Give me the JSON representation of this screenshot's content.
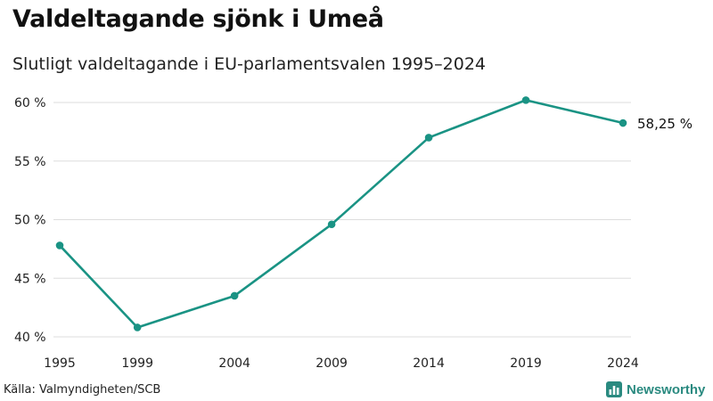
{
  "header": {
    "title": "Valdeltagande sjönk i Umeå",
    "subtitle": "Slutligt valdeltagande i EU-parlamentsvalen 1995–2024"
  },
  "footer": {
    "source": "Källa: Valmyndigheten/SCB",
    "brand_name": "Newsworthy",
    "brand_icon": "bar-chart-icon"
  },
  "colors": {
    "line": "#1a9384",
    "grid": "#dddddd",
    "brand": "#2a8a80"
  },
  "chart_data": {
    "type": "line",
    "title": "Valdeltagande sjönk i Umeå",
    "subtitle": "Slutligt valdeltagande i EU-parlamentsvalen 1995–2024",
    "x": [
      1995,
      1999,
      2004,
      2009,
      2014,
      2019,
      2024
    ],
    "x_tick_labels": [
      "1995",
      "1999",
      "2004",
      "2009",
      "2014",
      "2019",
      "2024"
    ],
    "series": [
      {
        "values": [
          47.8,
          40.8,
          43.5,
          49.6,
          57.0,
          60.2,
          58.25
        ]
      }
    ],
    "ylim": [
      40,
      60
    ],
    "y_ticks": [
      40,
      45,
      50,
      55,
      60
    ],
    "y_tick_labels": [
      "40 %",
      "45 %",
      "50 %",
      "55 %",
      "60 %"
    ],
    "end_label": "58,25 %",
    "grid": "horizontal",
    "legend": "none"
  }
}
